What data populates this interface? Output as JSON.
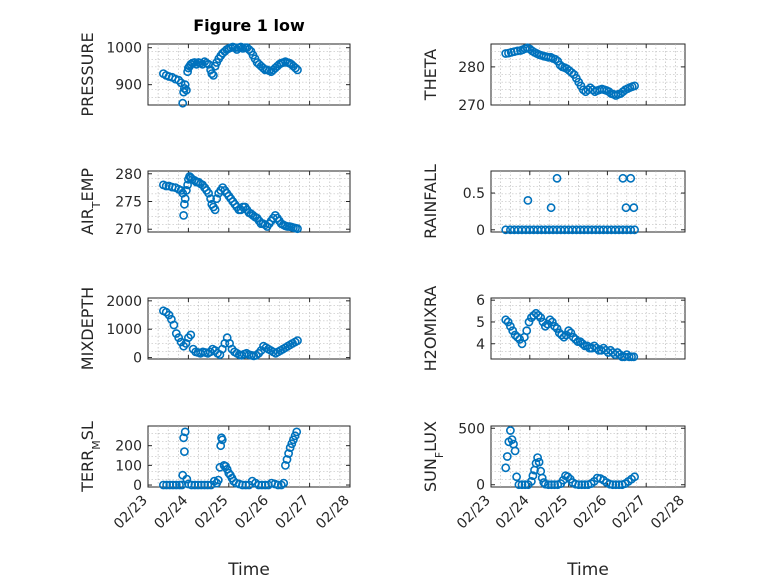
{
  "figure": {
    "title": "Figure 1 low",
    "xlabel": "Time",
    "marker_color": "#0072BD",
    "x_tick_labels": [
      "02/23",
      "02/24",
      "02/25",
      "02/26",
      "02/27",
      "02/28"
    ]
  },
  "chart_data": [
    {
      "type": "scatter",
      "name": "PRESSURE",
      "ylabel": "PRESSURE",
      "grid": true,
      "xlim": [
        0,
        5
      ],
      "ylim": [
        845,
        1010
      ],
      "yticks": [
        900,
        1000
      ],
      "x": [
        0.38,
        0.45,
        0.52,
        0.6,
        0.68,
        0.76,
        0.82,
        0.86,
        0.88,
        0.9,
        0.92,
        0.95,
        0.98,
        1.0,
        1.03,
        1.06,
        1.1,
        1.15,
        1.2,
        1.25,
        1.3,
        1.35,
        1.4,
        1.45,
        1.5,
        1.55,
        1.58,
        1.62,
        1.66,
        1.7,
        1.75,
        1.8,
        1.85,
        1.9,
        1.95,
        2.0,
        2.05,
        2.1,
        2.15,
        2.2,
        2.25,
        2.3,
        2.35,
        2.4,
        2.45,
        2.5,
        2.55,
        2.6,
        2.65,
        2.7,
        2.75,
        2.8,
        2.85,
        2.9,
        2.95,
        3.0,
        3.05,
        3.1,
        3.15,
        3.2,
        3.25,
        3.3,
        3.35,
        3.4,
        3.45,
        3.5,
        3.55,
        3.6,
        3.65,
        3.7
      ],
      "y": [
        930,
        925,
        922,
        920,
        915,
        912,
        905,
        850,
        880,
        890,
        900,
        885,
        935,
        945,
        950,
        955,
        958,
        960,
        955,
        960,
        958,
        955,
        962,
        958,
        955,
        940,
        930,
        925,
        950,
        960,
        970,
        978,
        985,
        990,
        995,
        998,
        1000,
        1002,
        1000,
        995,
        1000,
        1002,
        998,
        1000,
        1000,
        995,
        990,
        980,
        970,
        960,
        955,
        950,
        945,
        940,
        940,
        938,
        935,
        940,
        945,
        950,
        955,
        958,
        960,
        962,
        960,
        958,
        955,
        950,
        945,
        940
      ]
    },
    {
      "type": "scatter",
      "name": "THETA",
      "ylabel": "THETA",
      "grid": true,
      "xlim": [
        0,
        5
      ],
      "ylim": [
        270,
        286
      ],
      "yticks": [
        270,
        280
      ],
      "x": [
        0.38,
        0.45,
        0.52,
        0.6,
        0.68,
        0.76,
        0.82,
        0.88,
        0.94,
        1.0,
        1.06,
        1.12,
        1.18,
        1.24,
        1.3,
        1.36,
        1.42,
        1.48,
        1.54,
        1.6,
        1.66,
        1.72,
        1.78,
        1.84,
        1.9,
        1.96,
        2.02,
        2.08,
        2.14,
        2.2,
        2.26,
        2.32,
        2.38,
        2.44,
        2.5,
        2.56,
        2.62,
        2.68,
        2.74,
        2.8,
        2.86,
        2.92,
        2.98,
        3.04,
        3.1,
        3.16,
        3.22,
        3.28,
        3.34,
        3.4,
        3.46,
        3.52,
        3.58,
        3.64,
        3.7
      ],
      "y": [
        283.5,
        283.6,
        283.8,
        284.0,
        284.2,
        284.3,
        284.5,
        284.8,
        285.0,
        284.7,
        284.2,
        283.8,
        283.5,
        283.2,
        283.0,
        282.8,
        282.7,
        282.5,
        282.5,
        282.2,
        282.0,
        281.5,
        280.5,
        280.0,
        279.8,
        279.5,
        279.0,
        278.5,
        278.0,
        277.0,
        276.0,
        275.0,
        274.0,
        273.5,
        274.0,
        274.5,
        274.0,
        273.5,
        273.8,
        274.0,
        274.2,
        274.0,
        273.8,
        273.5,
        273.0,
        272.8,
        272.5,
        272.8,
        273.0,
        273.5,
        274.0,
        274.3,
        274.6,
        274.8,
        275.0
      ]
    },
    {
      "type": "scatter",
      "name": "AIR_TEMP",
      "ylabel": "AIR_TEMP",
      "grid": true,
      "xlim": [
        0,
        5
      ],
      "ylim": [
        269.5,
        280.5
      ],
      "yticks": [
        270,
        275,
        280
      ],
      "x": [
        0.38,
        0.45,
        0.52,
        0.6,
        0.68,
        0.76,
        0.82,
        0.86,
        0.88,
        0.9,
        0.92,
        0.95,
        0.98,
        1.0,
        1.03,
        1.06,
        1.1,
        1.15,
        1.2,
        1.25,
        1.3,
        1.35,
        1.4,
        1.45,
        1.5,
        1.55,
        1.58,
        1.62,
        1.66,
        1.7,
        1.75,
        1.8,
        1.85,
        1.9,
        1.95,
        2.0,
        2.05,
        2.1,
        2.15,
        2.2,
        2.25,
        2.3,
        2.35,
        2.4,
        2.45,
        2.5,
        2.55,
        2.6,
        2.65,
        2.7,
        2.75,
        2.8,
        2.85,
        2.9,
        2.95,
        3.0,
        3.05,
        3.1,
        3.15,
        3.2,
        3.25,
        3.3,
        3.35,
        3.4,
        3.45,
        3.5,
        3.55,
        3.6,
        3.65,
        3.7
      ],
      "y": [
        278.0,
        277.8,
        277.8,
        277.6,
        277.5,
        277.2,
        277.0,
        276.5,
        272.5,
        274.5,
        275.5,
        277.0,
        278.0,
        279.0,
        279.5,
        279.3,
        279.0,
        278.8,
        278.5,
        278.5,
        278.2,
        278.0,
        277.5,
        277.0,
        276.5,
        275.5,
        274.5,
        274.0,
        273.5,
        275.5,
        276.5,
        277.0,
        277.5,
        277.0,
        276.5,
        276.0,
        275.5,
        275.0,
        274.5,
        274.0,
        273.5,
        273.5,
        274.0,
        274.0,
        273.5,
        273.0,
        272.8,
        272.5,
        272.2,
        272.0,
        271.5,
        271.0,
        271.0,
        270.8,
        270.5,
        271.0,
        271.5,
        272.0,
        272.5,
        272.0,
        271.5,
        271.0,
        270.8,
        270.6,
        270.5,
        270.5,
        270.4,
        270.3,
        270.2,
        270.1
      ]
    },
    {
      "type": "scatter",
      "name": "RAINFALL",
      "ylabel": "RAINFALL",
      "grid": true,
      "xlim": [
        0,
        5
      ],
      "ylim": [
        -0.03,
        0.8
      ],
      "yticks": [
        0,
        0.5
      ],
      "x": [
        0.38,
        0.5,
        0.6,
        0.7,
        0.8,
        0.9,
        1.0,
        1.1,
        1.2,
        1.3,
        1.4,
        1.5,
        1.6,
        1.7,
        1.8,
        1.9,
        2.0,
        2.1,
        2.2,
        2.3,
        2.4,
        2.5,
        2.6,
        2.7,
        2.8,
        2.9,
        3.0,
        3.1,
        3.2,
        3.3,
        3.4,
        3.5,
        3.6,
        3.7,
        0.95,
        1.55,
        1.7,
        3.4,
        3.48,
        3.6,
        3.68
      ],
      "y": [
        0,
        0,
        0,
        0,
        0,
        0,
        0,
        0,
        0,
        0,
        0,
        0,
        0,
        0,
        0,
        0,
        0,
        0,
        0,
        0,
        0,
        0,
        0,
        0,
        0,
        0,
        0,
        0,
        0,
        0,
        0,
        0,
        0,
        0,
        0.4,
        0.3,
        0.7,
        0.7,
        0.3,
        0.7,
        0.3
      ]
    },
    {
      "type": "scatter",
      "name": "MIXDEPTH",
      "ylabel": "MIXDEPTH",
      "grid": true,
      "xlim": [
        0,
        5
      ],
      "ylim": [
        -50,
        2100
      ],
      "yticks": [
        0,
        1000,
        2000
      ],
      "x": [
        0.38,
        0.45,
        0.52,
        0.58,
        0.64,
        0.7,
        0.76,
        0.82,
        0.88,
        0.94,
        1.0,
        1.06,
        1.12,
        1.18,
        1.24,
        1.3,
        1.36,
        1.42,
        1.48,
        1.54,
        1.6,
        1.66,
        1.72,
        1.78,
        1.84,
        1.9,
        1.96,
        2.02,
        2.08,
        2.14,
        2.2,
        2.26,
        2.32,
        2.38,
        2.44,
        2.5,
        2.56,
        2.62,
        2.68,
        2.74,
        2.8,
        2.86,
        2.92,
        2.98,
        3.04,
        3.1,
        3.16,
        3.22,
        3.28,
        3.34,
        3.4,
        3.46,
        3.52,
        3.58,
        3.64,
        3.7
      ],
      "y": [
        1650,
        1600,
        1500,
        1350,
        1150,
        850,
        700,
        550,
        400,
        500,
        700,
        800,
        300,
        200,
        180,
        150,
        200,
        180,
        150,
        200,
        300,
        250,
        150,
        100,
        300,
        500,
        700,
        500,
        300,
        200,
        150,
        100,
        80,
        120,
        150,
        100,
        80,
        60,
        80,
        150,
        250,
        400,
        350,
        300,
        250,
        200,
        150,
        200,
        250,
        300,
        350,
        400,
        450,
        500,
        550,
        600
      ]
    },
    {
      "type": "scatter",
      "name": "H2OMIXRA",
      "ylabel": "H2OMIXRA",
      "grid": true,
      "xlim": [
        0,
        5
      ],
      "ylim": [
        3.3,
        6.1
      ],
      "yticks": [
        4,
        5,
        6
      ],
      "x": [
        0.38,
        0.44,
        0.5,
        0.56,
        0.62,
        0.68,
        0.74,
        0.8,
        0.86,
        0.92,
        0.98,
        1.04,
        1.1,
        1.16,
        1.22,
        1.28,
        1.34,
        1.4,
        1.46,
        1.52,
        1.58,
        1.64,
        1.7,
        1.76,
        1.82,
        1.88,
        1.94,
        2.0,
        2.06,
        2.12,
        2.18,
        2.24,
        2.3,
        2.36,
        2.42,
        2.48,
        2.54,
        2.6,
        2.66,
        2.72,
        2.78,
        2.84,
        2.9,
        2.96,
        3.02,
        3.08,
        3.14,
        3.2,
        3.26,
        3.32,
        3.38,
        3.44,
        3.5,
        3.56,
        3.62,
        3.68
      ],
      "y": [
        5.1,
        5.0,
        4.8,
        4.6,
        4.4,
        4.3,
        4.2,
        4.0,
        4.3,
        4.6,
        5.0,
        5.2,
        5.3,
        5.4,
        5.3,
        5.2,
        5.0,
        4.8,
        4.9,
        5.1,
        5.0,
        4.8,
        4.7,
        4.5,
        4.4,
        4.3,
        4.4,
        4.6,
        4.5,
        4.3,
        4.2,
        4.1,
        4.1,
        4.0,
        3.9,
        3.9,
        3.8,
        3.8,
        3.9,
        3.8,
        3.7,
        3.7,
        3.8,
        3.7,
        3.6,
        3.7,
        3.6,
        3.5,
        3.6,
        3.5,
        3.4,
        3.4,
        3.5,
        3.4,
        3.4,
        3.4
      ]
    },
    {
      "type": "scatter",
      "name": "TERR_MSL",
      "ylabel": "TERR_MSL",
      "grid": true,
      "xlim": [
        0,
        5
      ],
      "ylim": [
        -10,
        300
      ],
      "yticks": [
        0,
        100,
        200
      ],
      "x": [
        0.38,
        0.46,
        0.54,
        0.62,
        0.7,
        0.78,
        0.84,
        0.86,
        0.88,
        0.9,
        0.92,
        0.96,
        1.0,
        1.08,
        1.16,
        1.24,
        1.32,
        1.4,
        1.48,
        1.56,
        1.64,
        1.7,
        1.74,
        1.78,
        1.8,
        1.82,
        1.84,
        1.88,
        1.92,
        1.96,
        2.0,
        2.04,
        2.08,
        2.12,
        2.18,
        2.26,
        2.34,
        2.42,
        2.5,
        2.58,
        2.66,
        2.74,
        2.82,
        2.9,
        2.98,
        3.06,
        3.14,
        3.22,
        3.3,
        3.36,
        3.4,
        3.44,
        3.48,
        3.52,
        3.56,
        3.6,
        3.64,
        3.68
      ],
      "y": [
        0,
        0,
        0,
        0,
        0,
        0,
        0,
        50,
        240,
        170,
        270,
        30,
        5,
        0,
        0,
        0,
        0,
        0,
        0,
        0,
        20,
        10,
        25,
        90,
        200,
        240,
        230,
        100,
        95,
        80,
        60,
        50,
        35,
        20,
        10,
        5,
        0,
        0,
        0,
        20,
        10,
        0,
        0,
        0,
        0,
        10,
        5,
        0,
        0,
        10,
        100,
        130,
        160,
        190,
        210,
        230,
        250,
        270
      ]
    },
    {
      "type": "scatter",
      "name": "SUN_FLUX",
      "ylabel": "SUN_FLUX",
      "grid": true,
      "xlim": [
        0,
        5
      ],
      "ylim": [
        -20,
        520
      ],
      "yticks": [
        0,
        500
      ],
      "x": [
        0.38,
        0.42,
        0.46,
        0.5,
        0.54,
        0.58,
        0.62,
        0.66,
        0.72,
        0.8,
        0.88,
        0.96,
        1.04,
        1.08,
        1.12,
        1.16,
        1.2,
        1.24,
        1.28,
        1.32,
        1.36,
        1.4,
        1.48,
        1.56,
        1.64,
        1.72,
        1.8,
        1.86,
        1.92,
        1.98,
        2.04,
        2.1,
        2.18,
        2.26,
        2.34,
        2.42,
        2.5,
        2.58,
        2.66,
        2.74,
        2.82,
        2.9,
        2.98,
        3.06,
        3.14,
        3.22,
        3.3,
        3.38,
        3.46,
        3.54,
        3.62,
        3.7
      ],
      "y": [
        150,
        250,
        380,
        480,
        400,
        360,
        300,
        70,
        0,
        0,
        0,
        0,
        30,
        80,
        130,
        190,
        240,
        200,
        120,
        60,
        20,
        5,
        0,
        0,
        0,
        0,
        10,
        40,
        80,
        70,
        50,
        20,
        5,
        0,
        0,
        0,
        0,
        10,
        30,
        60,
        55,
        40,
        20,
        5,
        0,
        0,
        0,
        0,
        10,
        30,
        50,
        70
      ]
    }
  ]
}
